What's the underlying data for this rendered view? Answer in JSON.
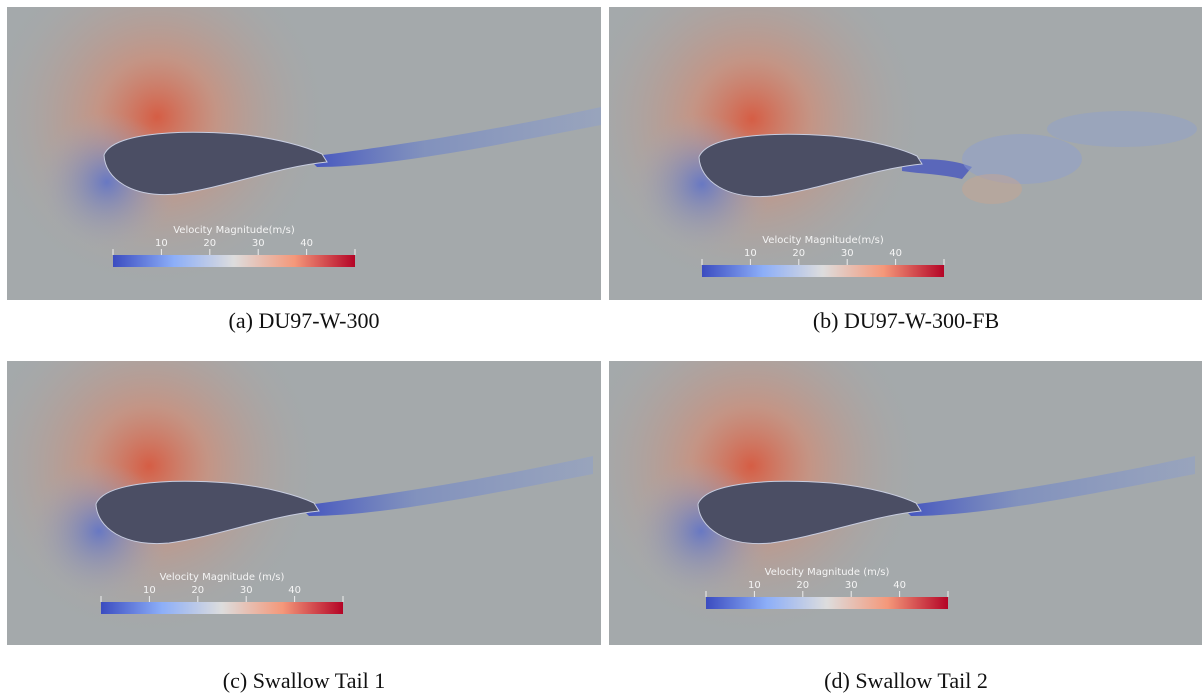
{
  "panels": [
    {
      "caption": "(a) DU97-W-300",
      "colorbar": {
        "title": "Velocity Magnitude(m/s)",
        "range": [
          0,
          50
        ],
        "ticks": [
          10,
          20,
          30,
          40
        ]
      }
    },
    {
      "caption": "(b) DU97-W-300-FB",
      "colorbar": {
        "title": "Velocity Magnitude(m/s)",
        "range": [
          0,
          50
        ],
        "ticks": [
          10,
          20,
          30,
          40
        ]
      }
    },
    {
      "caption": "(c) Swallow Tail 1",
      "colorbar": {
        "title": "Velocity Magnitude (m/s)",
        "range": [
          0,
          50
        ],
        "ticks": [
          10,
          20,
          30,
          40
        ]
      }
    },
    {
      "caption": "(d) Swallow Tail 2",
      "colorbar": {
        "title": "Velocity Magnitude (m/s)",
        "range": [
          0,
          50
        ],
        "ticks": [
          10,
          20,
          30,
          40
        ]
      }
    }
  ]
}
